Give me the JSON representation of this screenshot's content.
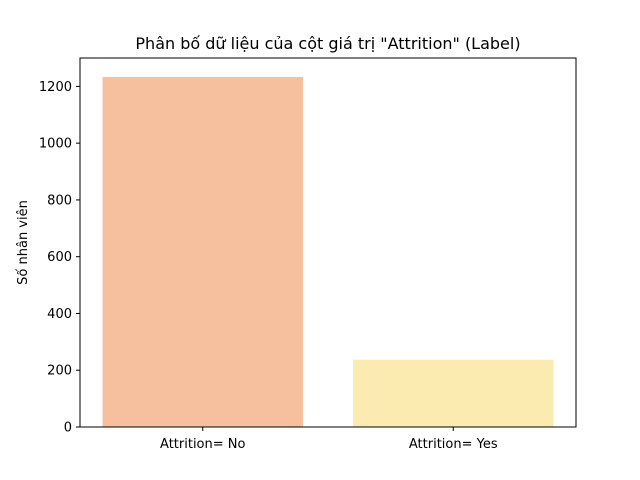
{
  "chart_data": {
    "type": "bar",
    "title": "Phân bố dữ liệu của cột giá trị \"Attrition\" (Label)",
    "xlabel": "",
    "ylabel": "Số nhân viên",
    "categories": [
      "Attrition= No",
      "Attrition= Yes"
    ],
    "values": [
      1233,
      237
    ],
    "colors": [
      "#f6bf9e",
      "#fcebb0"
    ],
    "ylim": [
      0,
      1300
    ],
    "yticks": [
      0,
      200,
      400,
      600,
      800,
      1000,
      1200
    ],
    "grid": false,
    "legend": "none"
  }
}
